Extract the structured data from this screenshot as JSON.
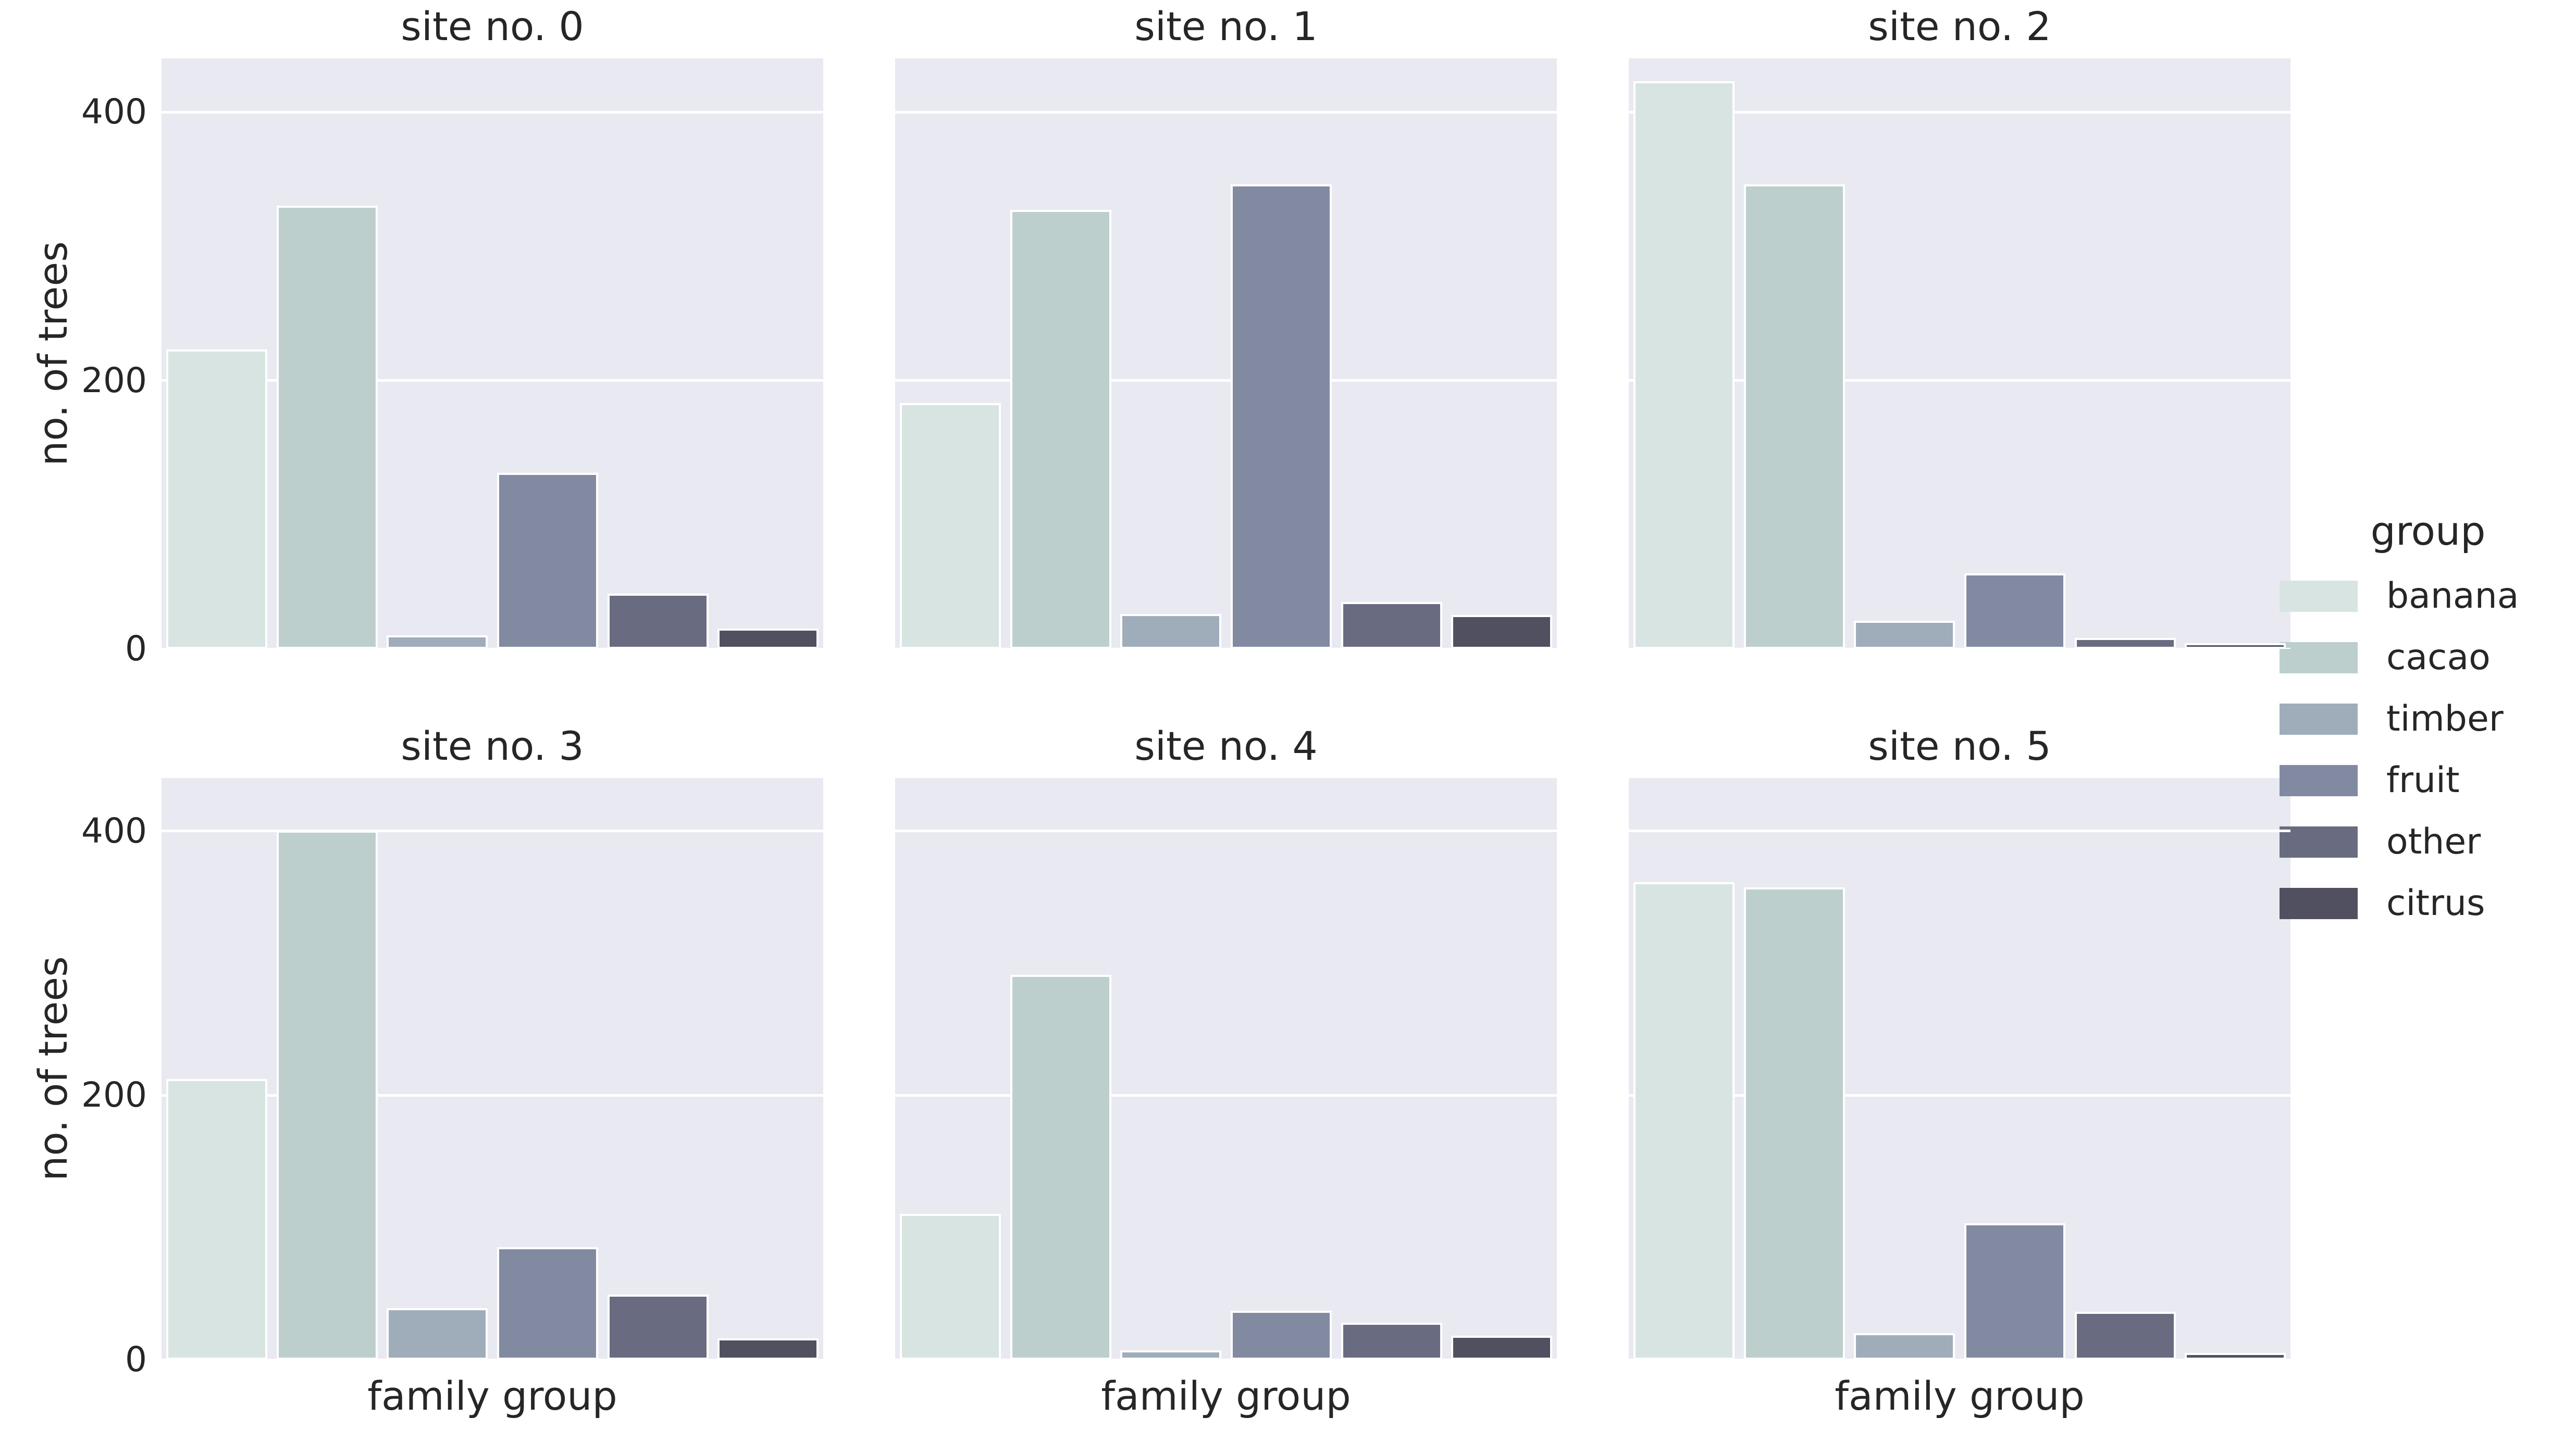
{
  "figure": {
    "background": "#ffffff",
    "axes_background": "#e9e9f1",
    "grid_color": "#ffffff",
    "text_color": "#262626",
    "bar_edge_color": "#ffffff"
  },
  "chart_data": {
    "type": "bar",
    "faceted": true,
    "facet_grid": [
      2,
      3
    ],
    "categories": [
      "banana",
      "cacao",
      "timber",
      "fruit",
      "other",
      "citrus"
    ],
    "facets": [
      {
        "title": "site no. 0",
        "values": [
          220,
          327,
          7,
          128,
          38,
          12
        ]
      },
      {
        "title": "site no. 1",
        "values": [
          180,
          324,
          23,
          343,
          32,
          22
        ]
      },
      {
        "title": "site no. 2",
        "values": [
          420,
          343,
          18,
          53,
          5,
          1
        ]
      },
      {
        "title": "site no. 3",
        "values": [
          209,
          397,
          36,
          82,
          46,
          13
        ]
      },
      {
        "title": "site no. 4",
        "values": [
          107,
          288,
          4,
          34,
          25,
          15
        ]
      },
      {
        "title": "site no. 5",
        "values": [
          358,
          354,
          17,
          100,
          33,
          2
        ]
      }
    ],
    "xlabel": "family group",
    "ylabel": "no. of trees",
    "ylim": [
      0,
      440
    ],
    "yticks": [
      0,
      200,
      400
    ],
    "ytick_labels": [
      "0",
      "200",
      "400"
    ],
    "xtick_labels": [],
    "grid": true,
    "legend_title": "group",
    "legend_position": "right",
    "palette": {
      "banana": "#d8e4e2",
      "cacao": "#bccfcd",
      "timber": "#9fadbb",
      "fruit": "#828aa2",
      "other": "#696c80",
      "citrus": "#515061"
    }
  },
  "legend": {
    "title": "group",
    "items": [
      {
        "label": "banana",
        "color": "#d8e4e2"
      },
      {
        "label": "cacao",
        "color": "#bccfcd"
      },
      {
        "label": "timber",
        "color": "#9fadbb"
      },
      {
        "label": "fruit",
        "color": "#828aa2"
      },
      {
        "label": "other",
        "color": "#696c80"
      },
      {
        "label": "citrus",
        "color": "#515061"
      }
    ]
  }
}
